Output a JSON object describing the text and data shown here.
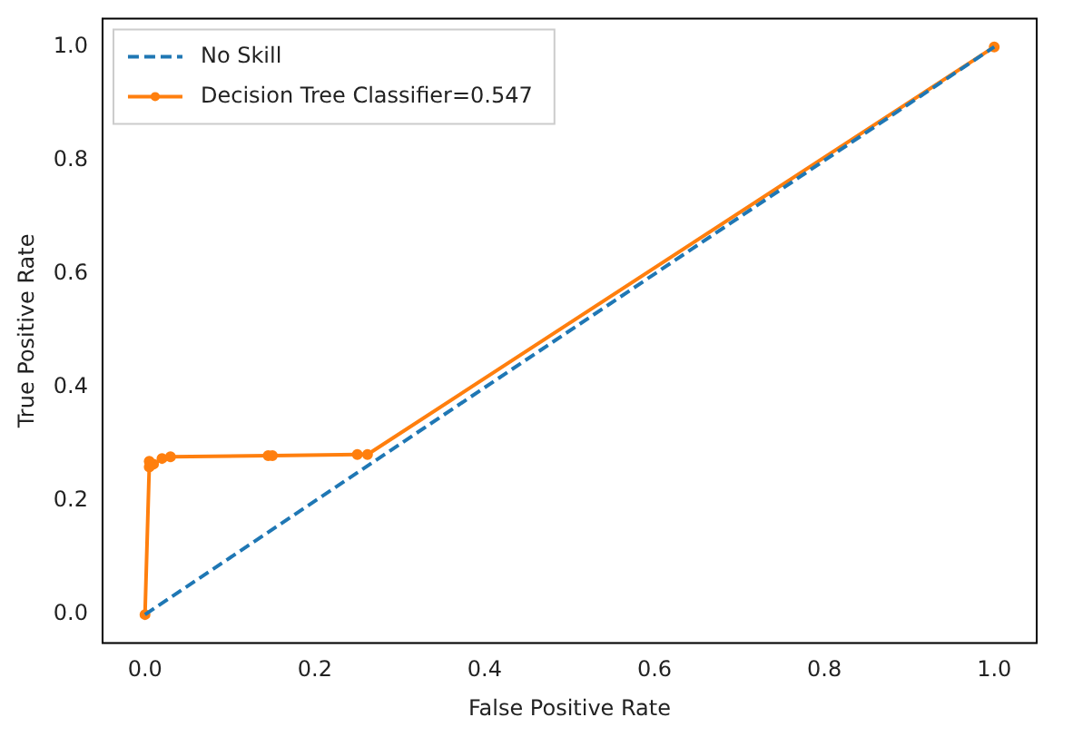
{
  "chart_data": {
    "type": "line",
    "xlabel": "False Positive Rate",
    "ylabel": "True Positive Rate",
    "xlim": [
      -0.05,
      1.05
    ],
    "ylim": [
      -0.05,
      1.05
    ],
    "xticks": [
      {
        "value": 0,
        "label": "0.0"
      },
      {
        "value": 0.2,
        "label": "0.2"
      },
      {
        "value": 0.4,
        "label": "0.4"
      },
      {
        "value": 0.6,
        "label": "0.6"
      },
      {
        "value": 0.8,
        "label": "0.8"
      },
      {
        "value": 1,
        "label": "1.0"
      }
    ],
    "yticks": [
      {
        "value": 0,
        "label": "0.0"
      },
      {
        "value": 0.2,
        "label": "0.2"
      },
      {
        "value": 0.4,
        "label": "0.4"
      },
      {
        "value": 0.6,
        "label": "0.6"
      },
      {
        "value": 0.8,
        "label": "0.8"
      },
      {
        "value": 1,
        "label": "1.0"
      }
    ],
    "legend": "top left",
    "grid": false,
    "series": [
      {
        "name": "No Skill",
        "color": "#1f77b4",
        "line_style": "dashed",
        "marker": "none",
        "x": [
          0,
          1
        ],
        "values": [
          0,
          1
        ]
      },
      {
        "name": "Decision Tree Classifier=0.547",
        "color": "#ff7f0e",
        "line_style": "solid",
        "marker": "circle",
        "x": [
          0,
          0.005,
          0.005,
          0.01,
          0.02,
          0.03,
          0.145,
          0.15,
          0.25,
          0.262,
          1
        ],
        "values": [
          0,
          0.26,
          0.27,
          0.265,
          0.275,
          0.278,
          0.28,
          0.28,
          0.282,
          0.282,
          1
        ]
      }
    ]
  }
}
